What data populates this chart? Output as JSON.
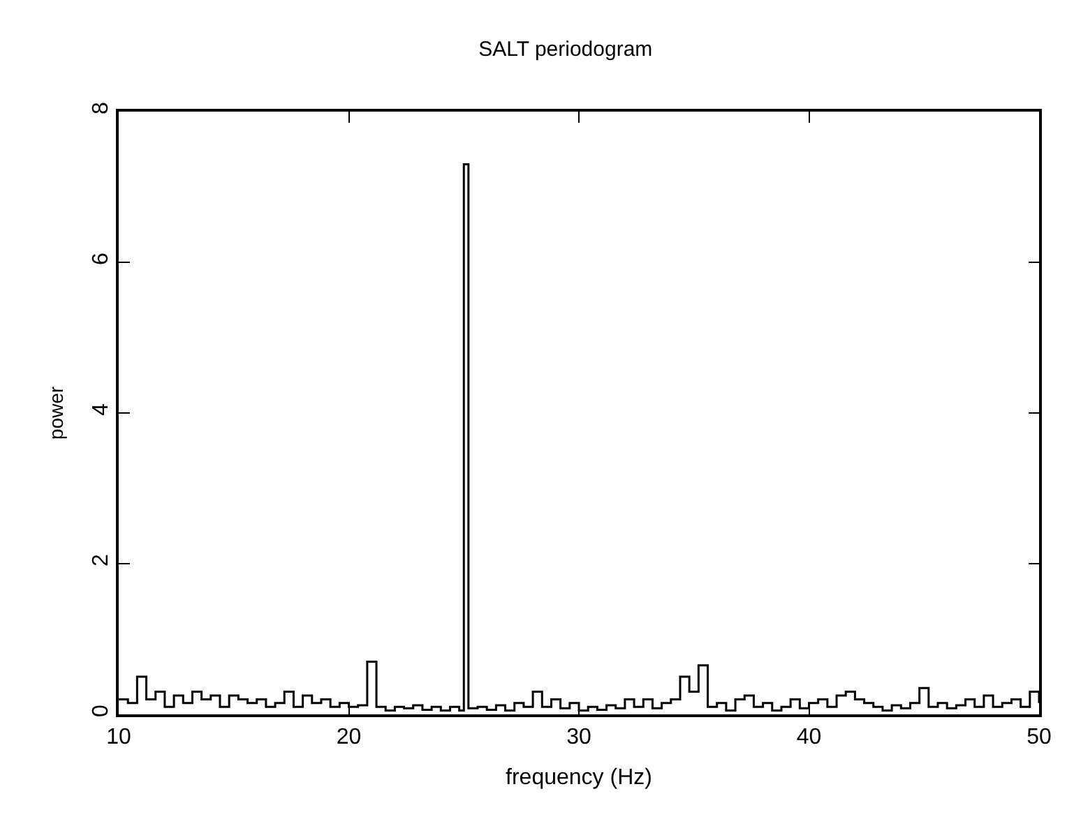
{
  "chart_data": {
    "type": "step",
    "title": "SALT periodogram",
    "xlabel": "frequency (Hz)",
    "ylabel": "power",
    "x": [
      10.0,
      10.4,
      10.8,
      11.2,
      11.6,
      12.0,
      12.4,
      12.8,
      13.2,
      13.6,
      14.0,
      14.4,
      14.8,
      15.2,
      15.6,
      16.0,
      16.4,
      16.8,
      17.2,
      17.6,
      18.0,
      18.4,
      18.8,
      19.2,
      19.6,
      20.0,
      20.4,
      20.8,
      21.2,
      21.6,
      22.0,
      22.4,
      22.8,
      23.2,
      23.6,
      24.0,
      24.4,
      24.8,
      25.0,
      25.2,
      25.6,
      26.0,
      26.4,
      26.8,
      27.2,
      27.6,
      28.0,
      28.4,
      28.8,
      29.2,
      29.6,
      30.0,
      30.4,
      30.8,
      31.2,
      31.6,
      32.0,
      32.4,
      32.8,
      33.2,
      33.6,
      34.0,
      34.4,
      34.8,
      35.2,
      35.6,
      36.0,
      36.4,
      36.8,
      37.2,
      37.6,
      38.0,
      38.4,
      38.8,
      39.2,
      39.6,
      40.0,
      40.4,
      40.8,
      41.2,
      41.6,
      42.0,
      42.4,
      42.8,
      43.2,
      43.6,
      44.0,
      44.4,
      44.8,
      45.2,
      45.6,
      46.0,
      46.4,
      46.8,
      47.2,
      47.6,
      48.0,
      48.4,
      48.8,
      49.2,
      49.6,
      50.0
    ],
    "series": [
      {
        "color": "#000000",
        "values": [
          0.2,
          0.15,
          0.5,
          0.2,
          0.3,
          0.1,
          0.25,
          0.15,
          0.3,
          0.2,
          0.25,
          0.1,
          0.25,
          0.2,
          0.15,
          0.2,
          0.1,
          0.15,
          0.3,
          0.1,
          0.25,
          0.15,
          0.2,
          0.1,
          0.15,
          0.1,
          0.12,
          0.7,
          0.1,
          0.05,
          0.1,
          0.08,
          0.12,
          0.06,
          0.1,
          0.05,
          0.1,
          0.05,
          7.3,
          0.08,
          0.1,
          0.06,
          0.12,
          0.05,
          0.15,
          0.1,
          0.3,
          0.1,
          0.2,
          0.08,
          0.15,
          0.05,
          0.1,
          0.06,
          0.12,
          0.08,
          0.2,
          0.1,
          0.2,
          0.08,
          0.15,
          0.2,
          0.5,
          0.3,
          0.65,
          0.1,
          0.15,
          0.05,
          0.2,
          0.25,
          0.1,
          0.15,
          0.05,
          0.1,
          0.2,
          0.08,
          0.15,
          0.2,
          0.1,
          0.25,
          0.3,
          0.2,
          0.15,
          0.1,
          0.05,
          0.12,
          0.08,
          0.15,
          0.35,
          0.1,
          0.15,
          0.08,
          0.12,
          0.2,
          0.1,
          0.25,
          0.1,
          0.15,
          0.2,
          0.1,
          0.3,
          0.15
        ]
      }
    ],
    "xlim": [
      10,
      50
    ],
    "ylim": [
      0,
      8
    ],
    "xticks": [
      10,
      20,
      30,
      40,
      50
    ],
    "yticks": [
      0,
      2,
      4,
      6,
      8
    ]
  }
}
